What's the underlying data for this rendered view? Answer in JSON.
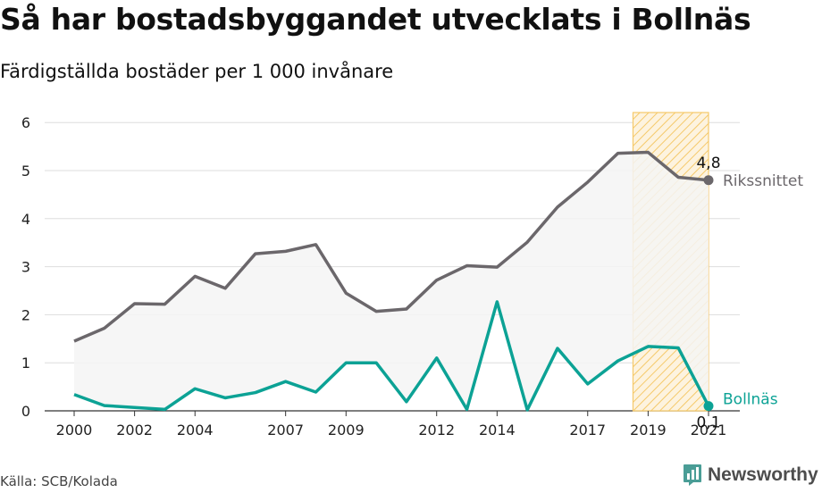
{
  "header": {
    "title": "Så har bostadsbyggandet utvecklats i Bollnäs",
    "subtitle": "Färdigställda bostäder per 1 000 invånare"
  },
  "footer": {
    "source": "Källa: SCB/Kolada",
    "brand": "Newsworthy"
  },
  "colors": {
    "national": "#6b676b",
    "local": "#0ca295",
    "highlight": "#f5c96a",
    "fill": "#f5f5f5",
    "grid": "#dddddd"
  },
  "chart_data": {
    "type": "line",
    "x": [
      2000,
      2001,
      2002,
      2003,
      2004,
      2005,
      2006,
      2007,
      2008,
      2009,
      2010,
      2011,
      2012,
      2013,
      2014,
      2015,
      2016,
      2017,
      2018,
      2019,
      2020,
      2021
    ],
    "series": [
      {
        "name": "Rikssnittet",
        "values": [
          1.45,
          1.72,
          2.23,
          2.22,
          2.8,
          2.55,
          3.27,
          3.32,
          3.46,
          2.45,
          2.07,
          2.12,
          2.72,
          3.02,
          2.99,
          3.51,
          4.24,
          4.76,
          5.36,
          5.38,
          4.86,
          4.8
        ]
      },
      {
        "name": "Bollnäs",
        "values": [
          0.34,
          0.11,
          0.07,
          0.03,
          0.46,
          0.27,
          0.38,
          0.61,
          0.39,
          1.0,
          1.0,
          0.19,
          1.1,
          0.03,
          2.27,
          0.02,
          1.3,
          0.56,
          1.04,
          1.34,
          1.31,
          0.1
        ]
      }
    ],
    "xticks": [
      "2000",
      "2002",
      "2004",
      "2007",
      "2009",
      "2012",
      "2014",
      "2017",
      "2019",
      "2021"
    ],
    "yticks": [
      "0",
      "1",
      "2",
      "3",
      "4",
      "5",
      "6"
    ],
    "ylim": [
      0,
      6.2
    ],
    "xlim": [
      1999.5,
      2021.5
    ],
    "highlight_range": [
      2018.5,
      2021
    ],
    "end_labels": {
      "national": "4,8",
      "local": "0,1"
    },
    "grid": true,
    "legend": "inline-right"
  }
}
